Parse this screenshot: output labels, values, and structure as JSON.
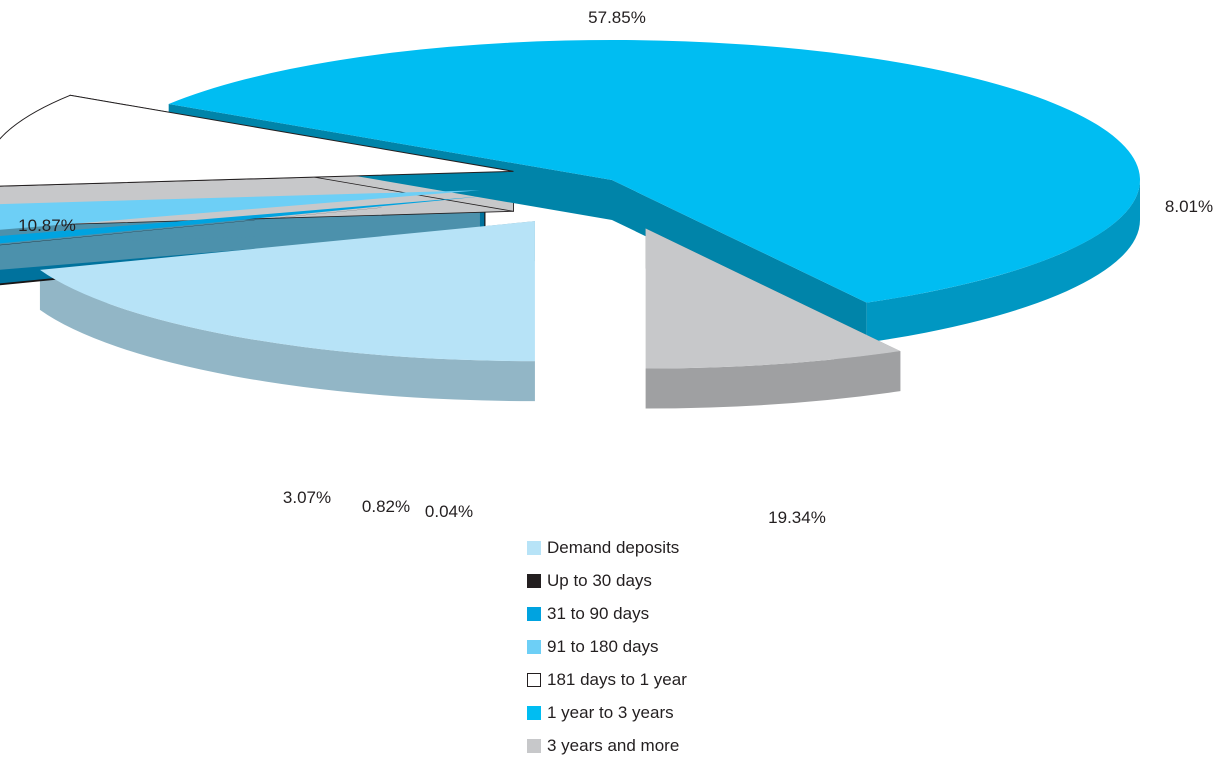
{
  "chart_data": {
    "type": "pie",
    "style": "3d-exploded",
    "slices": [
      {
        "label": "Demand deposits",
        "value": 19.34,
        "value_label": "19.34%",
        "color": "#b7e3f7"
      },
      {
        "label": "Up to 30 days",
        "value": 0.04,
        "value_label": "0.04%",
        "color": "#231f20"
      },
      {
        "label": "31 to 90 days",
        "value": 0.82,
        "value_label": "0.82%",
        "color": "#00a3e0"
      },
      {
        "label": "91 to 180 days",
        "value": 3.07,
        "value_label": "3.07%",
        "color": "#6dcff6"
      },
      {
        "label": "181 days to 1 year",
        "value": 10.87,
        "value_label": "10.87%",
        "color": "#ffffff"
      },
      {
        "label": "1 year to 3 years",
        "value": 57.85,
        "value_label": "57.85%",
        "color": "#00bdf2"
      },
      {
        "label": "3 years and more",
        "value": 8.01,
        "value_label": "8.01%",
        "color": "#c7c8ca"
      }
    ],
    "legend_position": "bottom-center"
  }
}
